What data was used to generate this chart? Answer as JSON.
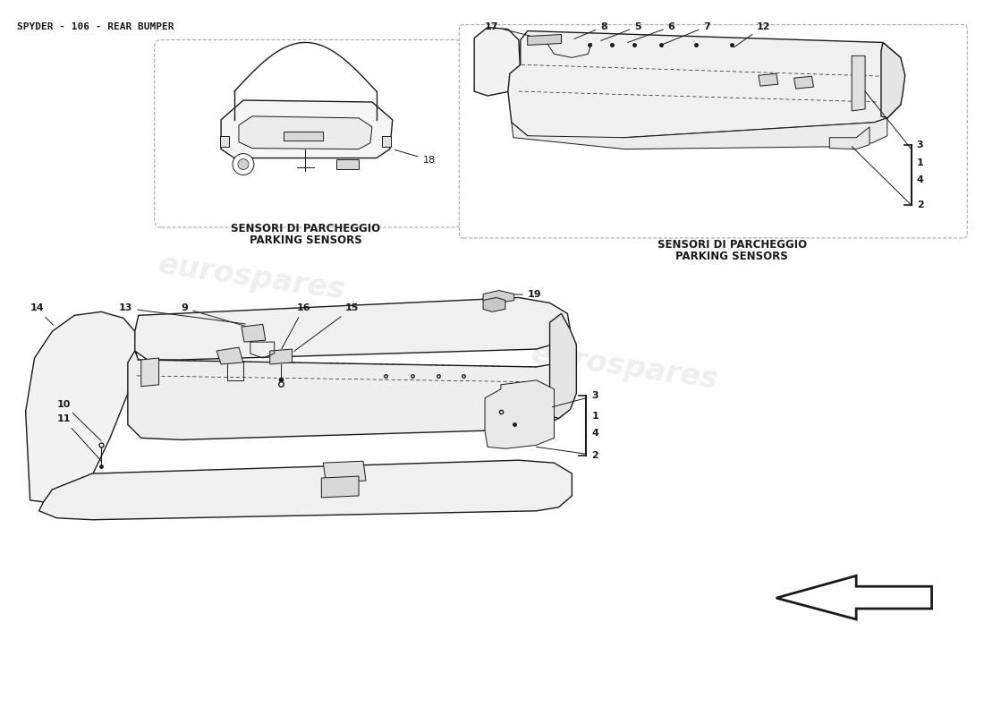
{
  "title": "SPYDER - 106 - REAR BUMPER",
  "title_fontsize": 8,
  "background_color": "#ffffff",
  "line_color": "#1a1a1a",
  "label_fontsize": 8,
  "watermark_color": "#cccccc",
  "watermark_alpha": 0.3,
  "arrow_color": "#ffffff",
  "arrow_edge": "#1a1a1a",
  "top_left_caption_it": "SENSORI DI PARCHEGGIO",
  "top_left_caption_en": "PARKING SENSORS",
  "top_right_caption_it": "SENSORI DI PARCHEGGIO",
  "top_right_caption_en": "PARKING SENSORS"
}
